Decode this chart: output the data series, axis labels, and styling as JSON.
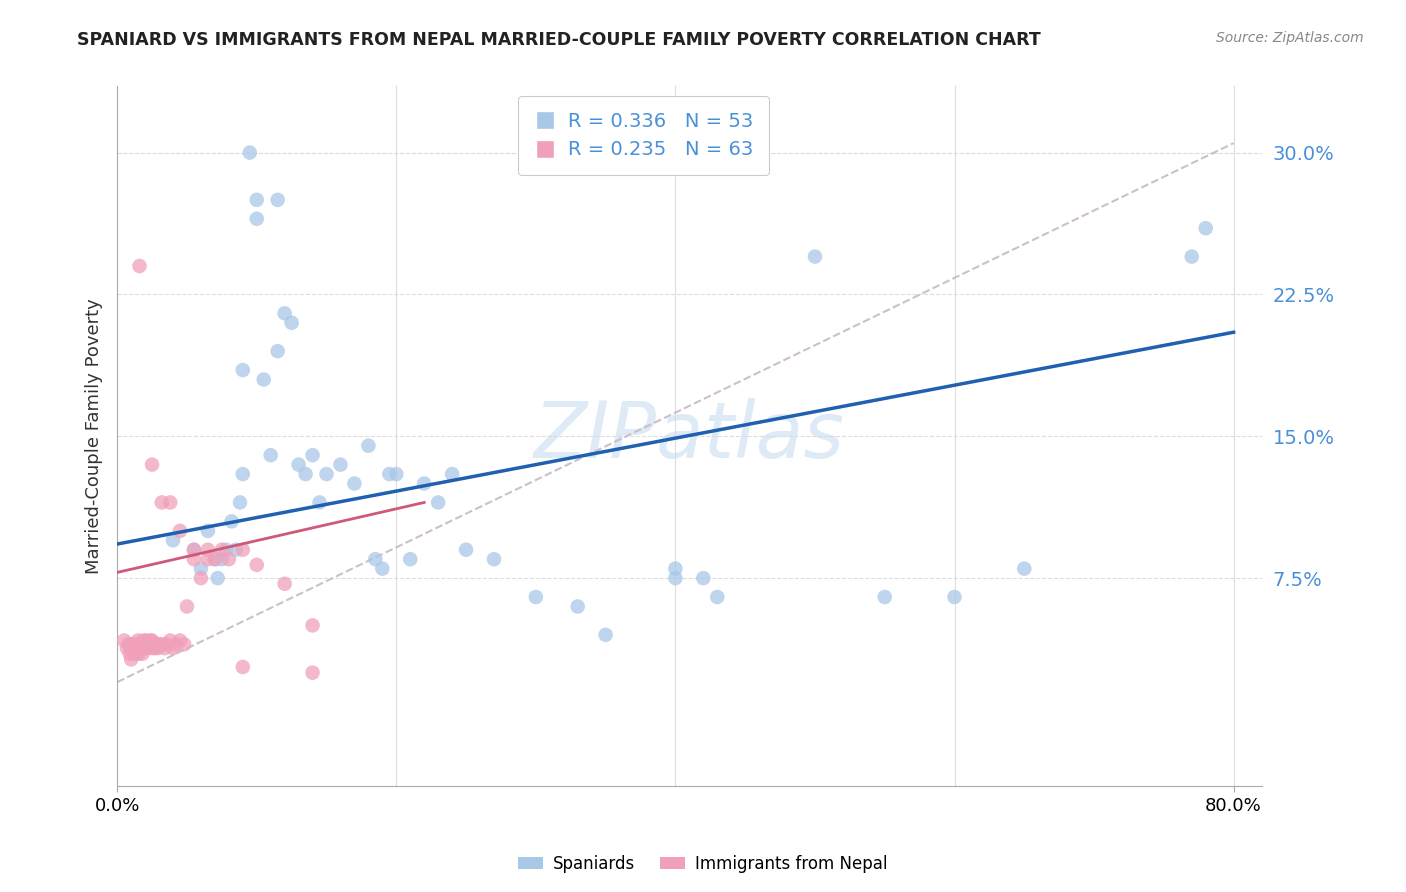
{
  "title": "SPANIARD VS IMMIGRANTS FROM NEPAL MARRIED-COUPLE FAMILY POVERTY CORRELATION CHART",
  "source": "Source: ZipAtlas.com",
  "ylabel_label": "Married-Couple Family Poverty",
  "legend_R_blue": "R = 0.336",
  "legend_N_blue": "N = 53",
  "legend_R_pink": "R = 0.235",
  "legend_N_pink": "N = 63",
  "blue_color": "#a8c8e8",
  "pink_color": "#f0a0b8",
  "blue_line_color": "#2060b0",
  "pink_line_color": "#d05878",
  "dashed_line_color": "#c8b8c8",
  "watermark_color": "#c8ddf0",
  "xlim": [
    0.0,
    0.82
  ],
  "ylim": [
    -0.035,
    0.335
  ],
  "ytick_vals": [
    0.075,
    0.15,
    0.225,
    0.3
  ],
  "ytick_labels": [
    "7.5%",
    "15.0%",
    "22.5%",
    "30.0%"
  ],
  "xtick_vals": [
    0.0,
    0.8
  ],
  "xtick_labels": [
    "0.0%",
    "80.0%"
  ],
  "blue_line": [
    0.0,
    0.093,
    0.8,
    0.205
  ],
  "pink_line": [
    0.0,
    0.078,
    0.22,
    0.115
  ],
  "diag_line": [
    0.0,
    0.02,
    0.8,
    0.305
  ],
  "blue_x": [
    0.04,
    0.055,
    0.06,
    0.065,
    0.07,
    0.072,
    0.075,
    0.078,
    0.082,
    0.085,
    0.088,
    0.09,
    0.09,
    0.095,
    0.1,
    0.1,
    0.105,
    0.11,
    0.115,
    0.115,
    0.12,
    0.125,
    0.13,
    0.135,
    0.14,
    0.145,
    0.15,
    0.16,
    0.17,
    0.18,
    0.185,
    0.19,
    0.195,
    0.2,
    0.21,
    0.22,
    0.23,
    0.24,
    0.25,
    0.27,
    0.3,
    0.33,
    0.35,
    0.4,
    0.42,
    0.43,
    0.5,
    0.55,
    0.6,
    0.65,
    0.77,
    0.78,
    0.4
  ],
  "blue_y": [
    0.095,
    0.09,
    0.08,
    0.1,
    0.085,
    0.075,
    0.085,
    0.09,
    0.105,
    0.09,
    0.115,
    0.185,
    0.13,
    0.3,
    0.275,
    0.265,
    0.18,
    0.14,
    0.275,
    0.195,
    0.215,
    0.21,
    0.135,
    0.13,
    0.14,
    0.115,
    0.13,
    0.135,
    0.125,
    0.145,
    0.085,
    0.08,
    0.13,
    0.13,
    0.085,
    0.125,
    0.115,
    0.13,
    0.09,
    0.085,
    0.065,
    0.06,
    0.045,
    0.08,
    0.075,
    0.065,
    0.245,
    0.065,
    0.065,
    0.08,
    0.245,
    0.26,
    0.075
  ],
  "pink_x": [
    0.005,
    0.007,
    0.008,
    0.009,
    0.01,
    0.01,
    0.01,
    0.011,
    0.012,
    0.012,
    0.013,
    0.013,
    0.014,
    0.015,
    0.015,
    0.015,
    0.016,
    0.016,
    0.017,
    0.018,
    0.018,
    0.019,
    0.02,
    0.02,
    0.021,
    0.022,
    0.023,
    0.024,
    0.025,
    0.025,
    0.026,
    0.027,
    0.028,
    0.029,
    0.03,
    0.032,
    0.034,
    0.035,
    0.038,
    0.04,
    0.042,
    0.045,
    0.048,
    0.05,
    0.055,
    0.06,
    0.065,
    0.07,
    0.075,
    0.08,
    0.09,
    0.1,
    0.12,
    0.14,
    0.016,
    0.025,
    0.032,
    0.038,
    0.045,
    0.055,
    0.065,
    0.09,
    0.14
  ],
  "pink_y": [
    0.042,
    0.038,
    0.04,
    0.035,
    0.04,
    0.038,
    0.032,
    0.04,
    0.038,
    0.035,
    0.04,
    0.035,
    0.038,
    0.04,
    0.035,
    0.042,
    0.04,
    0.038,
    0.038,
    0.04,
    0.035,
    0.042,
    0.04,
    0.038,
    0.042,
    0.038,
    0.04,
    0.042,
    0.038,
    0.042,
    0.04,
    0.038,
    0.04,
    0.038,
    0.04,
    0.04,
    0.038,
    0.04,
    0.042,
    0.038,
    0.04,
    0.042,
    0.04,
    0.06,
    0.085,
    0.075,
    0.09,
    0.085,
    0.09,
    0.085,
    0.09,
    0.082,
    0.072,
    0.05,
    0.24,
    0.135,
    0.115,
    0.115,
    0.1,
    0.09,
    0.085,
    0.028,
    0.025
  ]
}
